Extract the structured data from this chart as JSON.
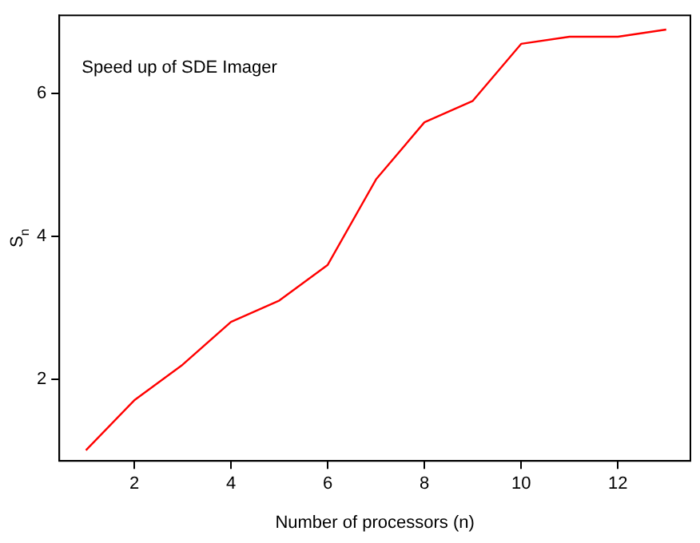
{
  "chart_data": {
    "type": "line",
    "xlabel": "Number of processors (n)",
    "ylabel": "S$_{n}$",
    "annotations": [
      "Speed up of SDE Imager"
    ],
    "x": [
      1,
      2,
      3,
      4,
      5,
      6,
      7,
      8,
      9,
      10,
      11,
      12,
      13
    ],
    "series": [
      {
        "color": "#ff0000",
        "values": [
          1.0,
          1.7,
          2.2,
          2.8,
          3.1,
          3.6,
          4.8,
          5.6,
          5.9,
          6.7,
          6.8,
          6.8,
          6.9
        ]
      }
    ],
    "xlim": [
      0.45,
      13.5
    ],
    "xticks": [
      2,
      4,
      6,
      8,
      10,
      12
    ],
    "ylim": [
      0.85,
      7.1
    ],
    "yticks": [
      2,
      4,
      6
    ],
    "grid": false,
    "legend": false,
    "marker": "none",
    "line_style": "solid"
  }
}
